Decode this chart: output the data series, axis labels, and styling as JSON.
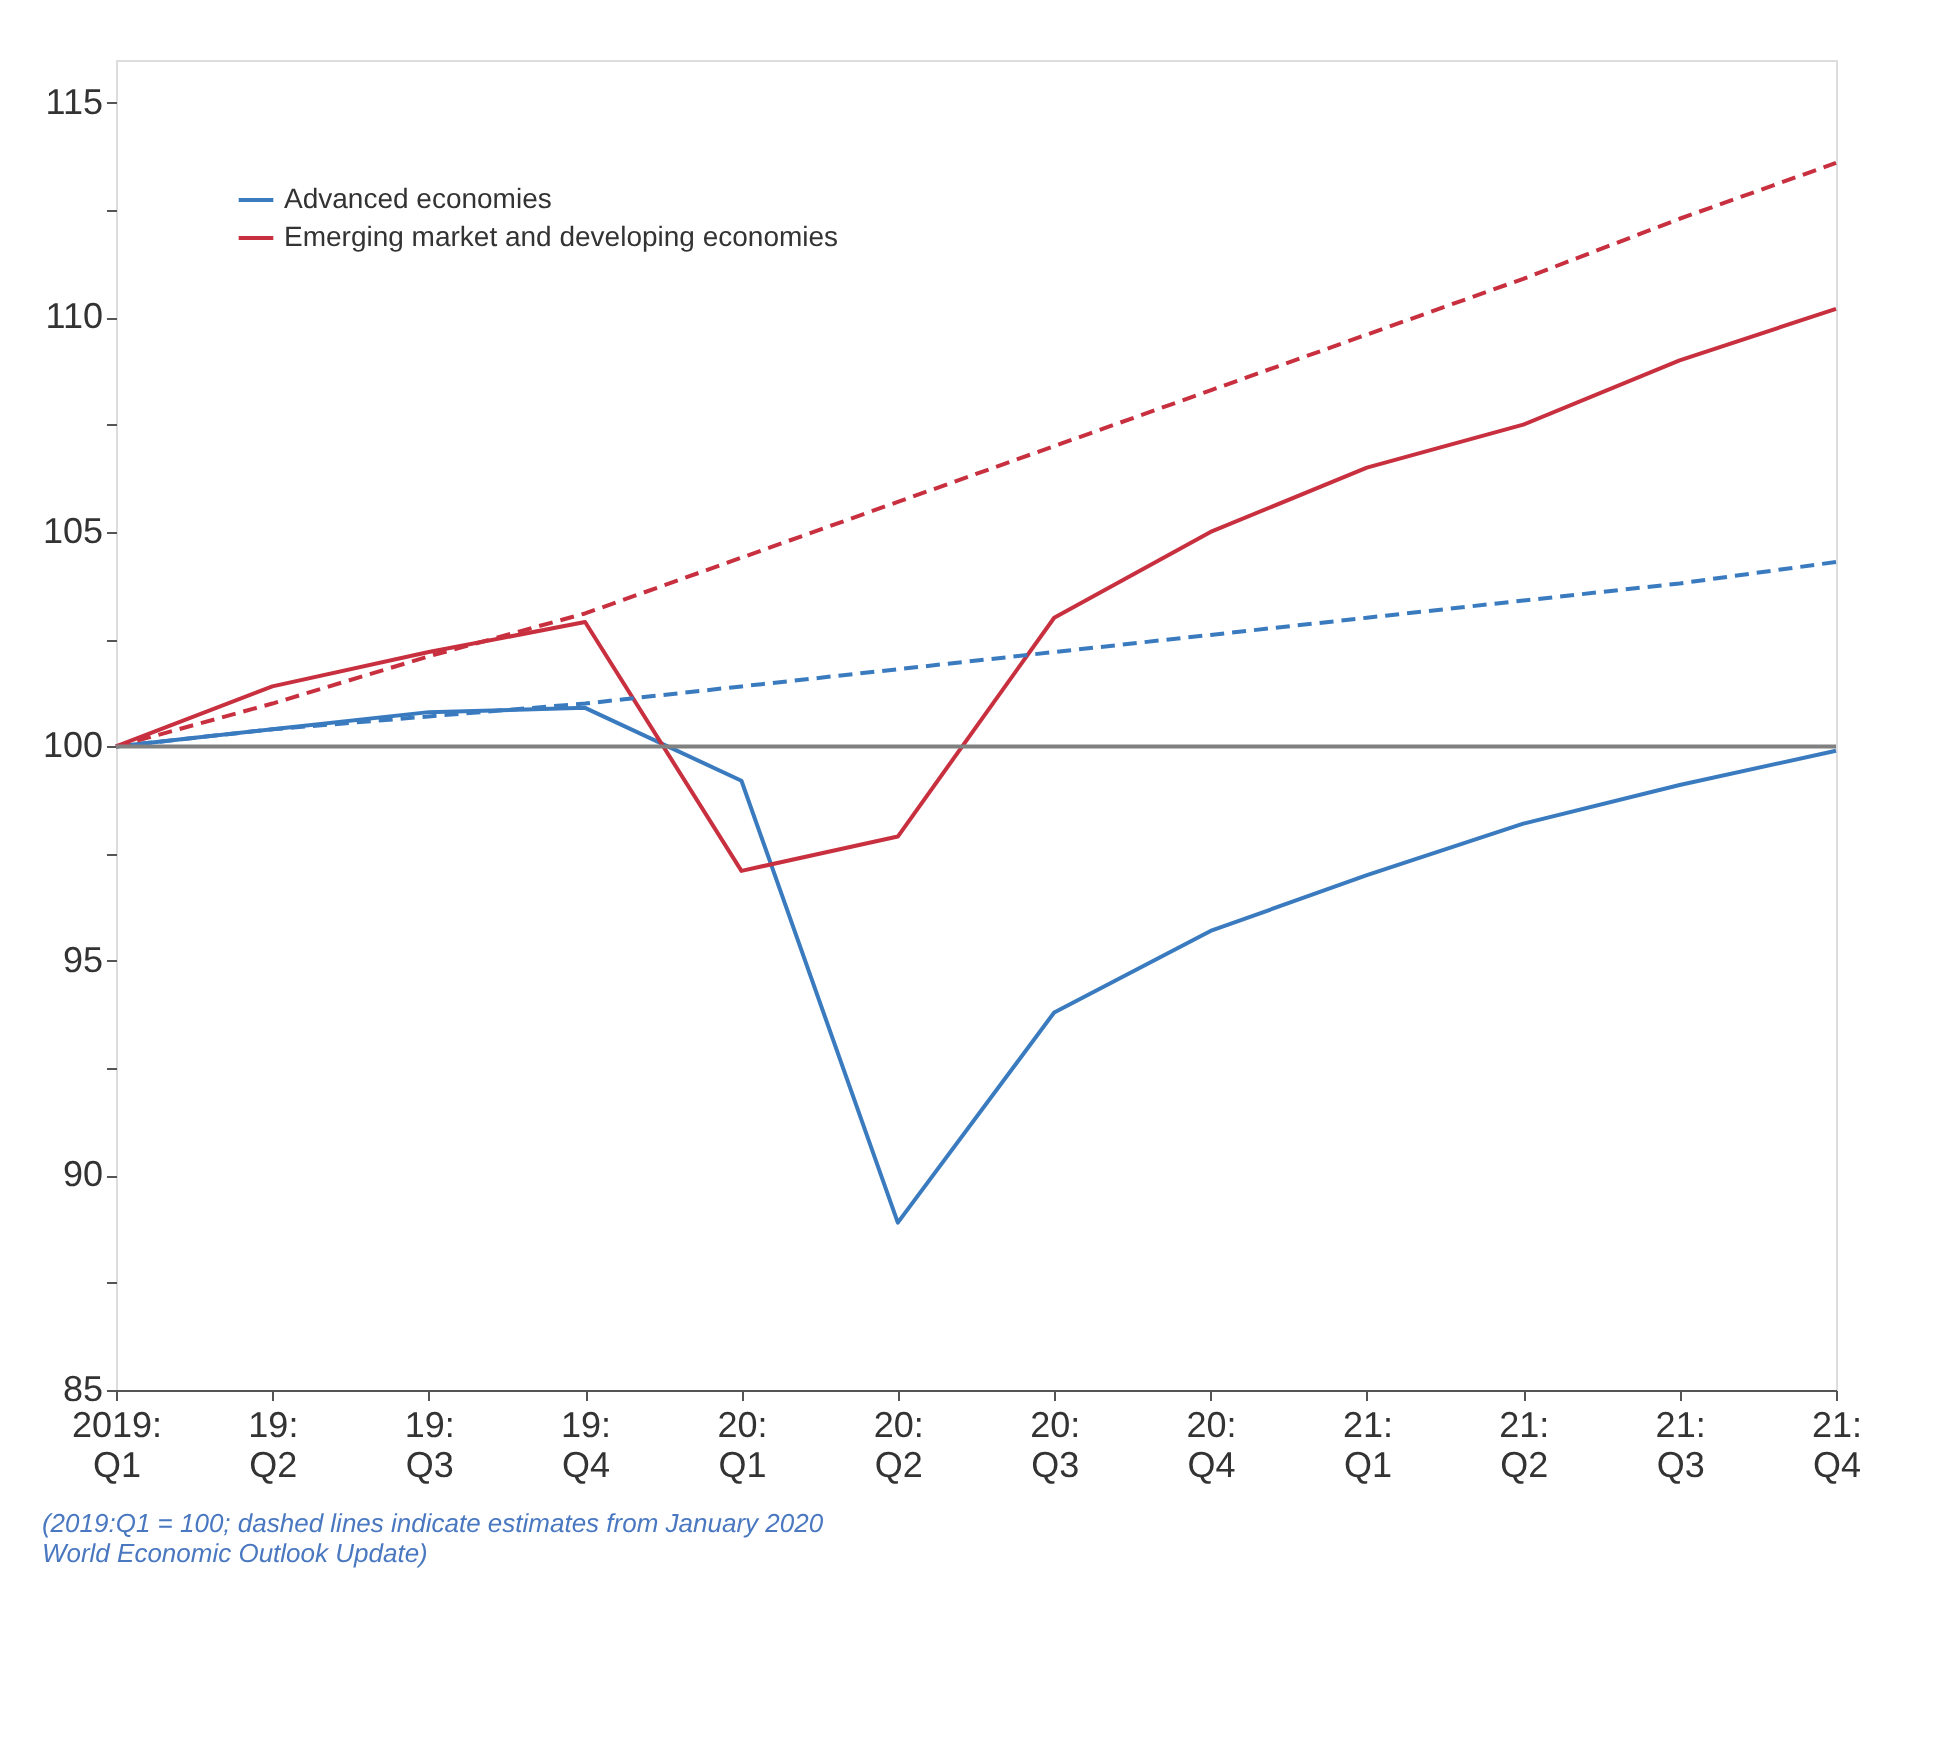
{
  "chart_data": {
    "type": "line",
    "categories": [
      "2019: Q1",
      "19: Q2",
      "19: Q3",
      "19: Q4",
      "20: Q1",
      "20: Q2",
      "20: Q3",
      "20: Q4",
      "21: Q1",
      "21: Q2",
      "21: Q3",
      "21: Q4"
    ],
    "series": [
      {
        "name": "Advanced economies",
        "color": "#3a7bbf",
        "values": [
          100,
          100.4,
          100.8,
          100.9,
          99.2,
          88.9,
          93.8,
          95.7,
          97.0,
          98.2,
          99.1,
          99.9
        ]
      },
      {
        "name": "Emerging market and developing economies",
        "color": "#c8303f",
        "values": [
          100,
          101.4,
          102.2,
          102.9,
          97.1,
          97.9,
          103.0,
          105.0,
          106.5,
          107.5,
          109.0,
          110.2
        ]
      },
      {
        "color": "#3a7bbf",
        "line_style": "dashed",
        "values": [
          100,
          100.4,
          100.7,
          101.0,
          101.4,
          101.8,
          102.2,
          102.6,
          103.0,
          103.4,
          103.8,
          104.3
        ]
      },
      {
        "color": "#c8303f",
        "line_style": "dashed",
        "values": [
          100,
          101.0,
          102.1,
          103.1,
          104.4,
          105.7,
          107.0,
          108.3,
          109.6,
          110.9,
          112.3,
          113.6
        ]
      }
    ],
    "ylim": [
      85,
      116
    ],
    "yticks": [
      85,
      {
        "value": 87.5,
        "label": null
      },
      90,
      {
        "value": 92.5,
        "label": null
      },
      95,
      {
        "value": 97.5,
        "label": null
      },
      100,
      {
        "value": 102.5,
        "label": null
      },
      105,
      {
        "value": 107.5,
        "label": null
      },
      110,
      {
        "value": 112.5,
        "label": null
      },
      115
    ],
    "ref_lines": [
      {
        "axis": "y",
        "value": 100,
        "color": "#808080"
      }
    ],
    "legend": "top left",
    "grid": false,
    "line_style": "solid",
    "annotations": [
      "(2019:Q1 = 100; dashed lines indicate estimates from January 2020 World Economic Outlook Update)"
    ]
  }
}
